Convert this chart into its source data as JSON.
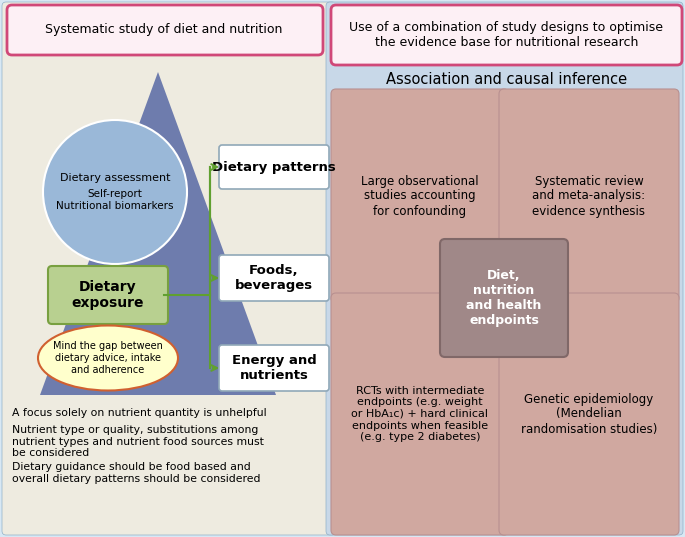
{
  "fig_width": 6.85,
  "fig_height": 5.37,
  "dpi": 100,
  "bg_outer": "#d8e8f4",
  "bg_left": "#eeebe0",
  "bg_right": "#c8d8e8",
  "pink_border": "#d04878",
  "pink_fill": "#fdf0f5",
  "blue_circle_fill": "#9ab8d8",
  "triangle_color": "#6070a8",
  "green_box_fill": "#b8d090",
  "green_box_edge": "#78a040",
  "right_box_fill": "#d0a8a0",
  "right_box_edge": "#b89090",
  "center_box_fill": "#a08888",
  "center_box_edge": "#806868",
  "yellow_ellipse_fill": "#ffffcc",
  "yellow_ellipse_edge": "#d06030",
  "white_box_fill": "#ffffff",
  "white_box_edge": "#90a8b8",
  "arrow_color": "#60a030",
  "outer_border": "#90b0c8",
  "title1": "Systematic study of diet and nutrition",
  "title2": "Use of a combination of study designs to optimise\nthe evidence base for nutritional research",
  "assoc_title": "Association and causal inference",
  "circle_text1": "Dietary assessment",
  "circle_text2": "Self-report\nNutritional biomarkers",
  "box_exposure": "Dietary\nexposure",
  "ellipse_text": "Mind the gap between\ndietary advice, intake\nand adherence",
  "wb1": "Dietary patterns",
  "wb2": "Foods,\nbeverages",
  "wb3": "Energy and\nnutrients",
  "rb1": "Large observational\nstudies accounting\nfor confounding",
  "rb2": "Systematic review\nand meta-analysis:\nevidence synthesis",
  "rb3": "RCTs with intermediate\nendpoints (e.g. weight\nor HbA₁c) + hard clinical\nendpoints when feasible\n(e.g. type 2 diabetes)",
  "rb4": "Genetic epidemiology\n(Mendelian\nrandomisation studies)",
  "cb": "Diet,\nnutrition\nand health\nendpoints",
  "bottom_text1": "A focus solely on nutrient quantity is unhelpful",
  "bottom_text2": "Nutrient type or quality, substitutions among\nnutrient types and nutrient food sources must\nbe considered",
  "bottom_text3": "Dietary guidance should be food based and\noverall dietary patterns should be considered"
}
